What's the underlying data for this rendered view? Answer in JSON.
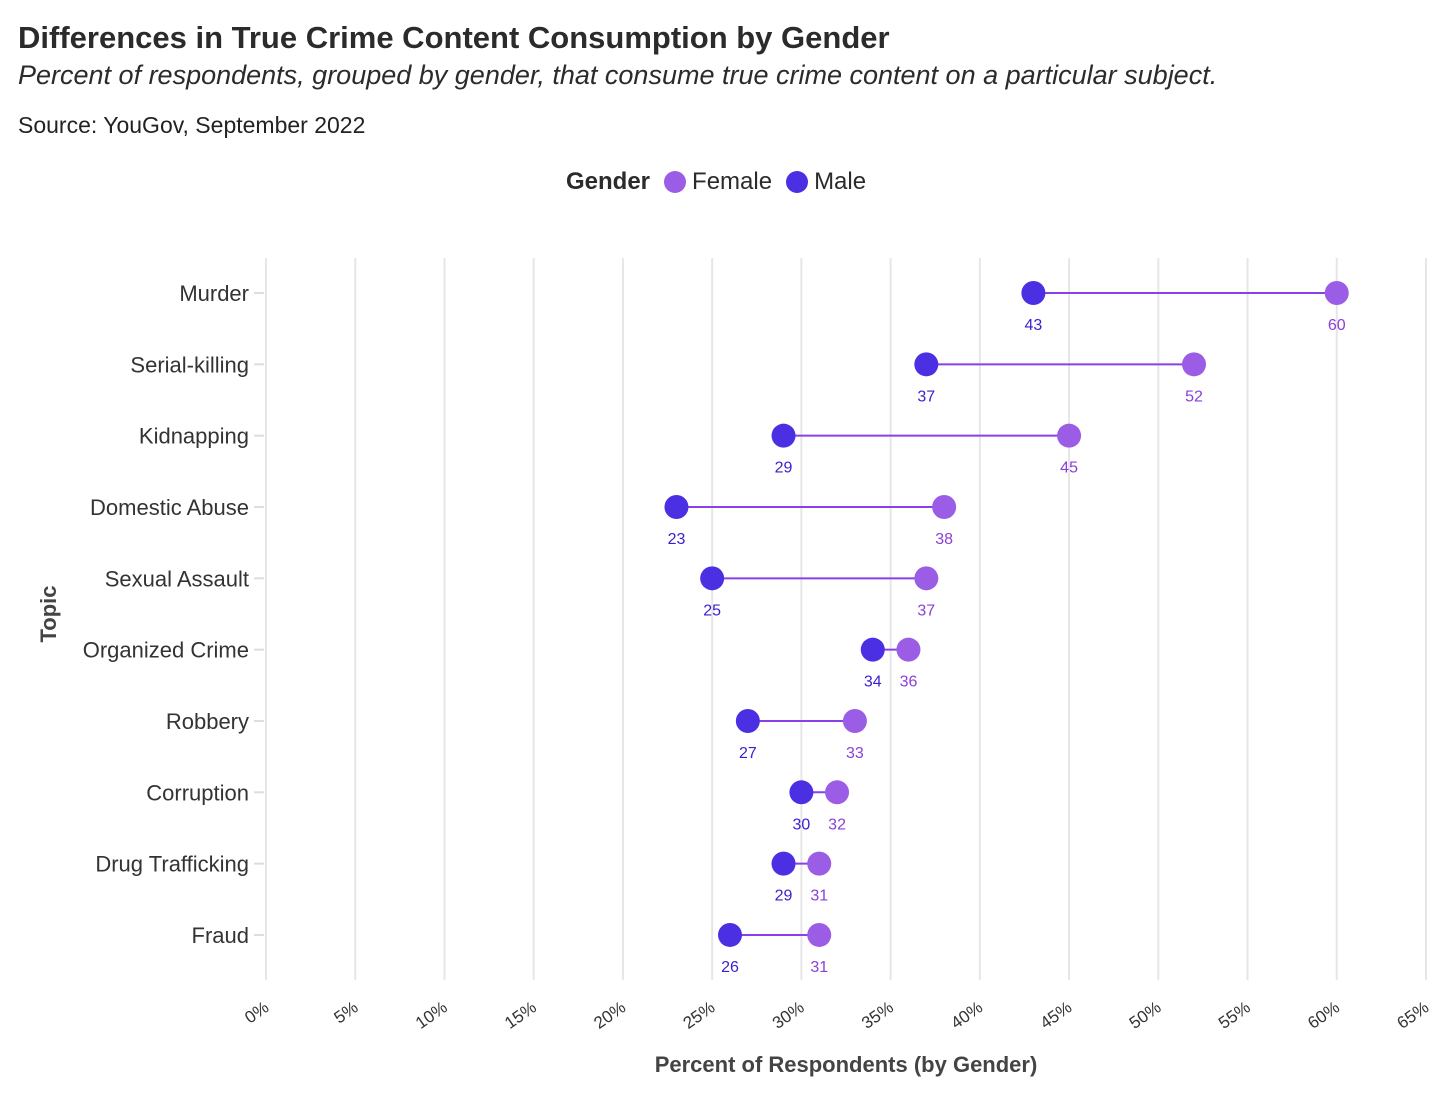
{
  "title": "Differences in True Crime Content Consumption by Gender",
  "subtitle": "Percent of respondents, grouped by gender, that consume true crime content on a particular subject.",
  "source": "Source: YouGov, September 2022",
  "colors": {
    "female": "#9b5de5",
    "male": "#4b2fe3",
    "line": "#8a3fe8",
    "female_label": "#8a3fd8",
    "male_label": "#3a1fcf"
  },
  "chart_data": {
    "type": "dumbbell",
    "title": "Differences in True Crime Content Consumption by Gender",
    "xlabel": "Percent of Respondents (by Gender)",
    "ylabel": "Topic",
    "xlim": [
      0,
      65
    ],
    "xticks": [
      "0%",
      "5%",
      "10%",
      "15%",
      "20%",
      "25%",
      "30%",
      "35%",
      "40%",
      "45%",
      "50%",
      "55%",
      "60%",
      "65%"
    ],
    "grid": "vertical",
    "legend": {
      "title": "Gender",
      "position": "top",
      "entries": [
        "Female",
        "Male"
      ]
    },
    "categories": [
      "Murder",
      "Serial-killing",
      "Kidnapping",
      "Domestic Abuse",
      "Sexual Assault",
      "Organized Crime",
      "Robbery",
      "Corruption",
      "Drug Trafficking",
      "Fraud"
    ],
    "series": [
      {
        "name": "Female",
        "values": [
          60,
          52,
          45,
          38,
          37,
          36,
          33,
          32,
          31,
          31
        ]
      },
      {
        "name": "Male",
        "values": [
          43,
          37,
          29,
          23,
          25,
          34,
          27,
          30,
          29,
          26
        ]
      }
    ]
  }
}
